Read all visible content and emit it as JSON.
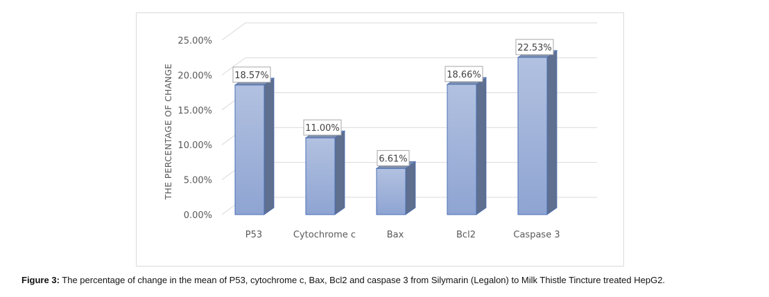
{
  "chart_data": {
    "type": "bar",
    "categories": [
      "P53",
      "Cytochrome c",
      "Bax",
      "Bcl2",
      "Caspase 3"
    ],
    "values": [
      18.57,
      11.0,
      6.61,
      18.66,
      22.53
    ],
    "data_labels": [
      "18.57%",
      "11.00%",
      "6.61%",
      "18.66%",
      "22.53%"
    ],
    "ylabel": "THE PERCENTAGE OF CHANGE",
    "xlabel": "",
    "ylim": [
      0,
      25
    ],
    "yticks": [
      0,
      5,
      10,
      15,
      20,
      25
    ],
    "ytick_labels": [
      "0.00%",
      "5.00%",
      "10.00%",
      "15.00%",
      "20.00%",
      "25.00%"
    ],
    "grid": true,
    "style": "3d-column",
    "colors": {
      "bar_top": "#b2c1e0",
      "bar_bottom": "#8ea4d2",
      "bar_side": "#5e6f8f",
      "bar_cap": "#7f8fae",
      "bar_edge": "#4a6fb5",
      "grid": "#d9d9d9",
      "label_box_border": "#a6a6a6"
    }
  },
  "caption": {
    "lead": "Figure 3:",
    "text": " The percentage of change in the mean of P53, cytochrome c, Bax, Bcl2 and caspase 3 from Silymarin (Legalon) to Milk Thistle Tincture treated HepG2."
  }
}
